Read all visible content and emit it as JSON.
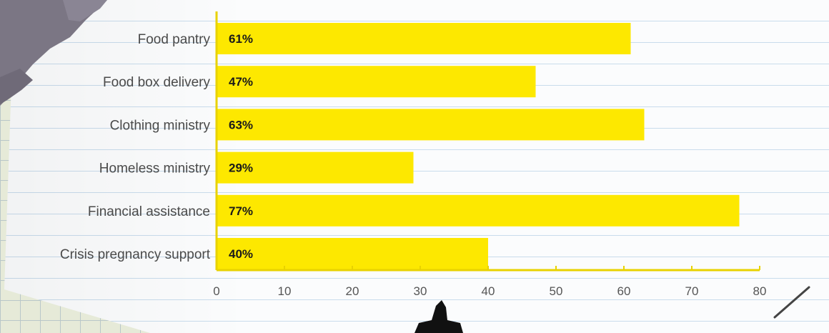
{
  "colors": {
    "bar": "#fde800",
    "axis": "#e8d200",
    "text": "#4a4a4a"
  },
  "chart_data": {
    "type": "bar",
    "orientation": "horizontal",
    "categories": [
      "Food pantry",
      "Food box delivery",
      "Clothing ministry",
      "Homeless ministry",
      "Financial assistance",
      "Crisis pregnancy support"
    ],
    "values": [
      61,
      47,
      63,
      29,
      77,
      40
    ],
    "value_labels": [
      "61%",
      "47%",
      "63%",
      "29%",
      "77%",
      "40%"
    ],
    "xlim": [
      0,
      80
    ],
    "xticks": [
      0,
      10,
      20,
      30,
      40,
      50,
      60,
      70,
      80
    ],
    "title": "",
    "xlabel": "",
    "ylabel": "",
    "grid": false,
    "legend": "none"
  }
}
